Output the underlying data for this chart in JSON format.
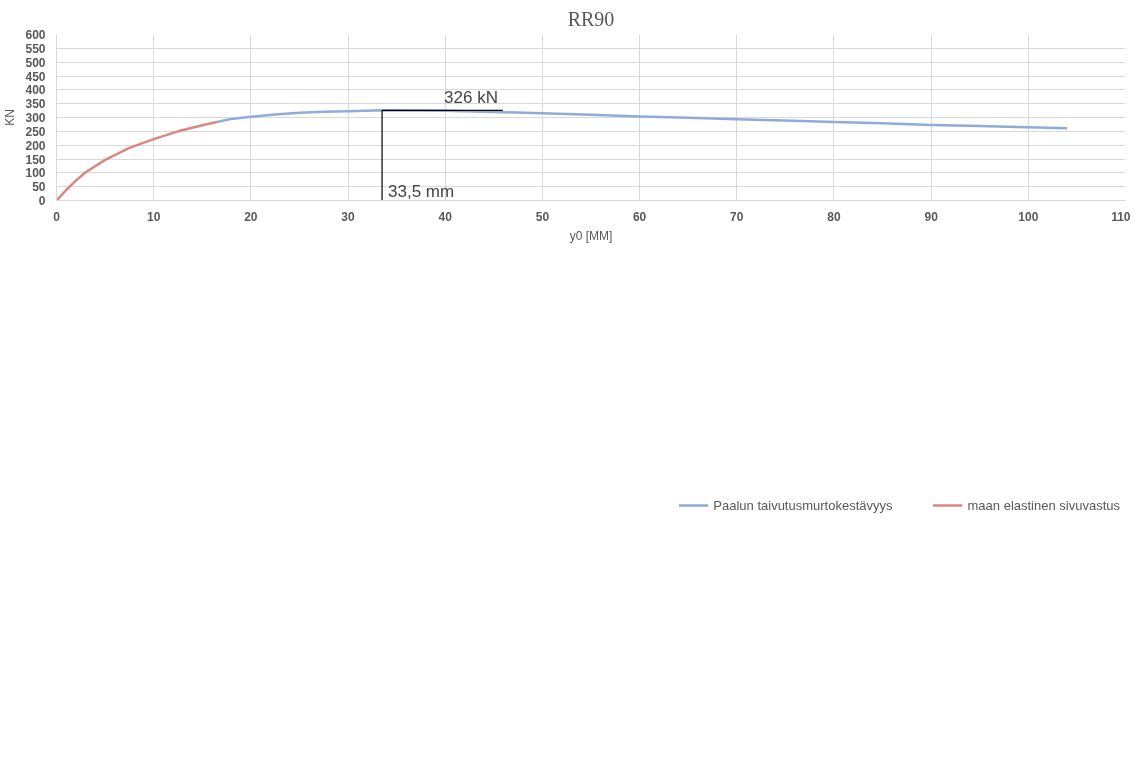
{
  "chart_data": {
    "type": "line",
    "title": "RR90",
    "xlabel": "y0 [MM]",
    "ylabel": "KN",
    "xlim": [
      0,
      110
    ],
    "xticks": [
      0,
      10,
      20,
      30,
      40,
      50,
      60,
      70,
      80,
      90,
      100,
      110
    ],
    "ylim": [
      0,
      600
    ],
    "yticks": [
      0,
      50,
      100,
      150,
      200,
      250,
      300,
      350,
      400,
      450,
      500,
      550,
      600
    ],
    "grid": true,
    "legend": "bottom",
    "marker": "none",
    "line_style": "solid",
    "series": [
      {
        "name": "Paalun taivutusmurtokestävyys",
        "color": "#8eacd8",
        "x": [
          16.5,
          18,
          20,
          22.5,
          25,
          27.5,
          30,
          33.5,
          37,
          40,
          45,
          50,
          55,
          60,
          65,
          70,
          75,
          80,
          85,
          90,
          95,
          100,
          104
        ],
        "values": [
          284,
          295,
          303,
          311,
          317,
          321,
          323,
          326,
          325,
          324,
          320,
          315,
          310,
          304,
          299,
          294,
          289,
          284,
          279,
          273,
          269,
          265,
          261
        ]
      },
      {
        "name": "maan elastinen sivuvastus",
        "color": "#d98880",
        "x": [
          0,
          1,
          2,
          3,
          5,
          7.5,
          10,
          12.5,
          15,
          16.5
        ],
        "values": [
          0,
          38,
          72,
          102,
          147,
          190,
          222,
          250,
          272,
          284
        ]
      }
    ],
    "annotations": [
      {
        "text": "326 kN",
        "x": 33.5,
        "y": 326
      },
      {
        "text": "33,5 mm",
        "x": 33.5,
        "y": 326
      }
    ]
  }
}
